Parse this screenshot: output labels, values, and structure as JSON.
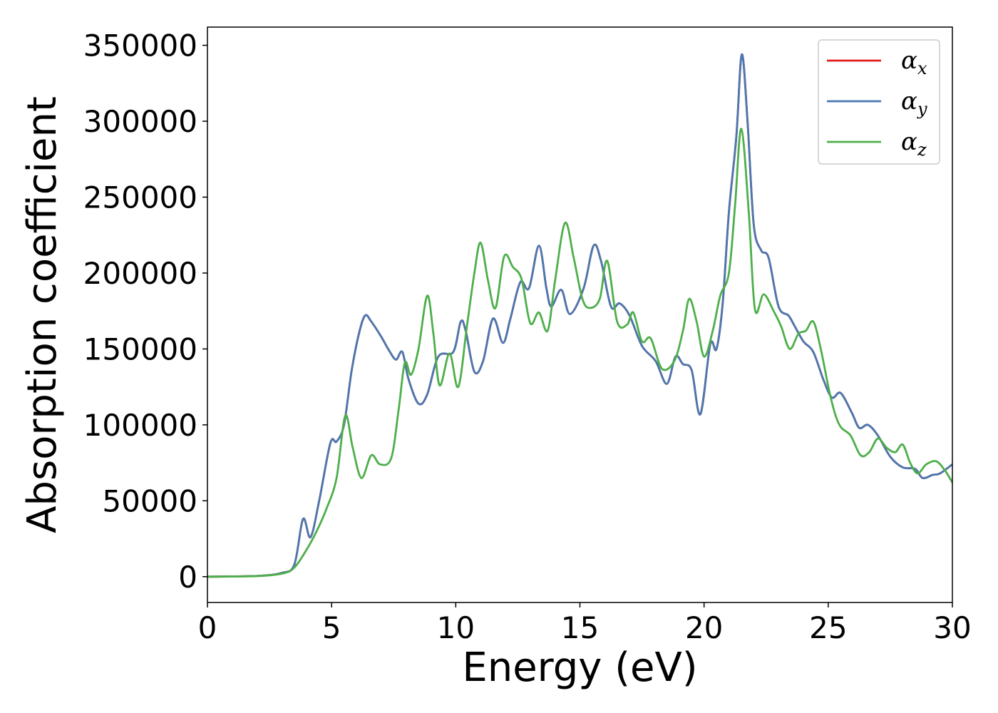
{
  "chart_data": {
    "type": "line",
    "title": "",
    "xlabel": "Energy (eV)",
    "ylabel": "Absorption coefficient",
    "xlim": [
      0,
      30
    ],
    "ylim": [
      -17000,
      362000
    ],
    "xticks": [
      0,
      5,
      10,
      15,
      20,
      25,
      30
    ],
    "yticks": [
      0,
      50000,
      100000,
      150000,
      200000,
      250000,
      300000,
      350000
    ],
    "grid": false,
    "legend": {
      "placement": "top-right"
    },
    "series": [
      {
        "name": "αx",
        "symbol": "α",
        "sub": "x",
        "color": "#e41a1c",
        "points": [
          [
            0,
            0
          ],
          [
            2,
            500
          ],
          [
            3,
            2500
          ],
          [
            3.5,
            8000
          ],
          [
            3.85,
            38000
          ],
          [
            4.15,
            26000
          ],
          [
            4.5,
            50000
          ],
          [
            4.95,
            88000
          ],
          [
            5.2,
            89000
          ],
          [
            5.5,
            100000
          ],
          [
            5.8,
            135000
          ],
          [
            6.1,
            160000
          ],
          [
            6.35,
            172000
          ],
          [
            6.6,
            168000
          ],
          [
            7,
            158000
          ],
          [
            7.35,
            148000
          ],
          [
            7.6,
            143000
          ],
          [
            7.85,
            148000
          ],
          [
            8.1,
            130000
          ],
          [
            8.5,
            114000
          ],
          [
            8.85,
            120000
          ],
          [
            9.3,
            145000
          ],
          [
            9.9,
            148000
          ],
          [
            10.2,
            168000
          ],
          [
            10.4,
            162000
          ],
          [
            10.75,
            135000
          ],
          [
            11.1,
            142000
          ],
          [
            11.5,
            170000
          ],
          [
            11.9,
            154000
          ],
          [
            12.2,
            170000
          ],
          [
            12.6,
            194000
          ],
          [
            12.95,
            190000
          ],
          [
            13.35,
            218000
          ],
          [
            13.65,
            190000
          ],
          [
            13.85,
            178000
          ],
          [
            14.25,
            189000
          ],
          [
            14.6,
            173000
          ],
          [
            15.15,
            190000
          ],
          [
            15.55,
            218000
          ],
          [
            15.85,
            208000
          ],
          [
            16.25,
            178000
          ],
          [
            16.6,
            180000
          ],
          [
            17.0,
            172000
          ],
          [
            17.5,
            152000
          ],
          [
            18.05,
            142000
          ],
          [
            18.5,
            127000
          ],
          [
            18.85,
            145000
          ],
          [
            19.15,
            140000
          ],
          [
            19.5,
            136000
          ],
          [
            19.85,
            107000
          ],
          [
            20.25,
            153000
          ],
          [
            20.5,
            150000
          ],
          [
            20.75,
            180000
          ],
          [
            21.0,
            240000
          ],
          [
            21.3,
            290000
          ],
          [
            21.52,
            344000
          ],
          [
            21.75,
            300000
          ],
          [
            22.0,
            232000
          ],
          [
            22.3,
            215000
          ],
          [
            22.6,
            210000
          ],
          [
            23.0,
            178000
          ],
          [
            23.4,
            172000
          ],
          [
            23.65,
            165000
          ],
          [
            24.0,
            155000
          ],
          [
            24.4,
            148000
          ],
          [
            24.8,
            130000
          ],
          [
            25.15,
            118000
          ],
          [
            25.5,
            121000
          ],
          [
            25.95,
            108000
          ],
          [
            26.25,
            98000
          ],
          [
            26.6,
            100000
          ],
          [
            27.0,
            93000
          ],
          [
            27.5,
            79000
          ],
          [
            28.0,
            72000
          ],
          [
            28.5,
            71000
          ],
          [
            28.8,
            65000
          ],
          [
            29.2,
            67000
          ],
          [
            29.5,
            68000
          ],
          [
            30.0,
            74000
          ]
        ]
      },
      {
        "name": "αy",
        "symbol": "α",
        "sub": "y",
        "color": "#4a78b0",
        "points": [
          [
            0,
            0
          ],
          [
            2,
            500
          ],
          [
            3,
            2500
          ],
          [
            3.5,
            8000
          ],
          [
            3.85,
            38000
          ],
          [
            4.15,
            26000
          ],
          [
            4.5,
            50000
          ],
          [
            4.95,
            88000
          ],
          [
            5.2,
            89000
          ],
          [
            5.5,
            100000
          ],
          [
            5.8,
            135000
          ],
          [
            6.1,
            160000
          ],
          [
            6.35,
            172000
          ],
          [
            6.6,
            168000
          ],
          [
            7,
            158000
          ],
          [
            7.35,
            148000
          ],
          [
            7.6,
            143000
          ],
          [
            7.85,
            148000
          ],
          [
            8.1,
            130000
          ],
          [
            8.5,
            114000
          ],
          [
            8.85,
            120000
          ],
          [
            9.3,
            145000
          ],
          [
            9.9,
            148000
          ],
          [
            10.2,
            168000
          ],
          [
            10.4,
            162000
          ],
          [
            10.75,
            135000
          ],
          [
            11.1,
            142000
          ],
          [
            11.5,
            170000
          ],
          [
            11.9,
            154000
          ],
          [
            12.2,
            170000
          ],
          [
            12.6,
            194000
          ],
          [
            12.95,
            190000
          ],
          [
            13.35,
            218000
          ],
          [
            13.65,
            190000
          ],
          [
            13.85,
            178000
          ],
          [
            14.25,
            189000
          ],
          [
            14.6,
            173000
          ],
          [
            15.15,
            190000
          ],
          [
            15.55,
            218000
          ],
          [
            15.85,
            208000
          ],
          [
            16.25,
            178000
          ],
          [
            16.6,
            180000
          ],
          [
            17.0,
            172000
          ],
          [
            17.5,
            152000
          ],
          [
            18.05,
            142000
          ],
          [
            18.5,
            127000
          ],
          [
            18.85,
            145000
          ],
          [
            19.15,
            140000
          ],
          [
            19.5,
            136000
          ],
          [
            19.85,
            107000
          ],
          [
            20.25,
            153000
          ],
          [
            20.5,
            150000
          ],
          [
            20.75,
            180000
          ],
          [
            21.0,
            240000
          ],
          [
            21.3,
            290000
          ],
          [
            21.52,
            344000
          ],
          [
            21.75,
            300000
          ],
          [
            22.0,
            232000
          ],
          [
            22.3,
            215000
          ],
          [
            22.6,
            210000
          ],
          [
            23.0,
            178000
          ],
          [
            23.4,
            172000
          ],
          [
            23.65,
            165000
          ],
          [
            24.0,
            155000
          ],
          [
            24.4,
            148000
          ],
          [
            24.8,
            130000
          ],
          [
            25.15,
            118000
          ],
          [
            25.5,
            121000
          ],
          [
            25.95,
            108000
          ],
          [
            26.25,
            98000
          ],
          [
            26.6,
            100000
          ],
          [
            27.0,
            93000
          ],
          [
            27.5,
            79000
          ],
          [
            28.0,
            72000
          ],
          [
            28.5,
            71000
          ],
          [
            28.8,
            65000
          ],
          [
            29.2,
            67000
          ],
          [
            29.5,
            68000
          ],
          [
            30.0,
            74000
          ]
        ]
      },
      {
        "name": "αz",
        "symbol": "α",
        "sub": "z",
        "color": "#4daf4a",
        "points": [
          [
            0,
            0
          ],
          [
            2,
            400
          ],
          [
            3,
            2000
          ],
          [
            3.5,
            6000
          ],
          [
            4.0,
            18000
          ],
          [
            4.4,
            30000
          ],
          [
            4.8,
            45000
          ],
          [
            5.2,
            65000
          ],
          [
            5.55,
            106000
          ],
          [
            5.85,
            85000
          ],
          [
            6.2,
            65000
          ],
          [
            6.6,
            80000
          ],
          [
            6.95,
            74000
          ],
          [
            7.4,
            78000
          ],
          [
            7.7,
            110000
          ],
          [
            7.95,
            141000
          ],
          [
            8.2,
            133000
          ],
          [
            8.5,
            150000
          ],
          [
            8.85,
            185000
          ],
          [
            9.1,
            160000
          ],
          [
            9.35,
            126000
          ],
          [
            9.75,
            147000
          ],
          [
            10.1,
            125000
          ],
          [
            10.45,
            165000
          ],
          [
            10.75,
            200000
          ],
          [
            11.0,
            220000
          ],
          [
            11.3,
            195000
          ],
          [
            11.6,
            177000
          ],
          [
            11.95,
            211000
          ],
          [
            12.3,
            204000
          ],
          [
            12.65,
            196000
          ],
          [
            13.0,
            167000
          ],
          [
            13.35,
            174000
          ],
          [
            13.7,
            162000
          ],
          [
            14.0,
            195000
          ],
          [
            14.4,
            233000
          ],
          [
            14.75,
            210000
          ],
          [
            15.1,
            183000
          ],
          [
            15.4,
            177000
          ],
          [
            15.8,
            183000
          ],
          [
            16.1,
            208000
          ],
          [
            16.5,
            168000
          ],
          [
            16.9,
            166000
          ],
          [
            17.15,
            174000
          ],
          [
            17.5,
            155000
          ],
          [
            17.85,
            157000
          ],
          [
            18.3,
            137000
          ],
          [
            18.8,
            142000
          ],
          [
            19.15,
            162000
          ],
          [
            19.4,
            183000
          ],
          [
            19.7,
            168000
          ],
          [
            20.0,
            145000
          ],
          [
            20.35,
            162000
          ],
          [
            20.65,
            185000
          ],
          [
            21.0,
            200000
          ],
          [
            21.25,
            245000
          ],
          [
            21.5,
            295000
          ],
          [
            21.8,
            240000
          ],
          [
            22.05,
            176000
          ],
          [
            22.4,
            186000
          ],
          [
            22.8,
            175000
          ],
          [
            23.1,
            165000
          ],
          [
            23.45,
            150000
          ],
          [
            23.8,
            160000
          ],
          [
            24.1,
            162000
          ],
          [
            24.4,
            168000
          ],
          [
            24.7,
            150000
          ],
          [
            25.1,
            118000
          ],
          [
            25.45,
            100000
          ],
          [
            25.9,
            93000
          ],
          [
            26.3,
            80000
          ],
          [
            26.65,
            82000
          ],
          [
            27.0,
            91000
          ],
          [
            27.35,
            85000
          ],
          [
            27.7,
            82000
          ],
          [
            28.0,
            87000
          ],
          [
            28.3,
            75000
          ],
          [
            28.6,
            68000
          ],
          [
            28.95,
            74000
          ],
          [
            29.35,
            76000
          ],
          [
            29.7,
            70000
          ],
          [
            30.0,
            62000
          ]
        ]
      }
    ]
  }
}
